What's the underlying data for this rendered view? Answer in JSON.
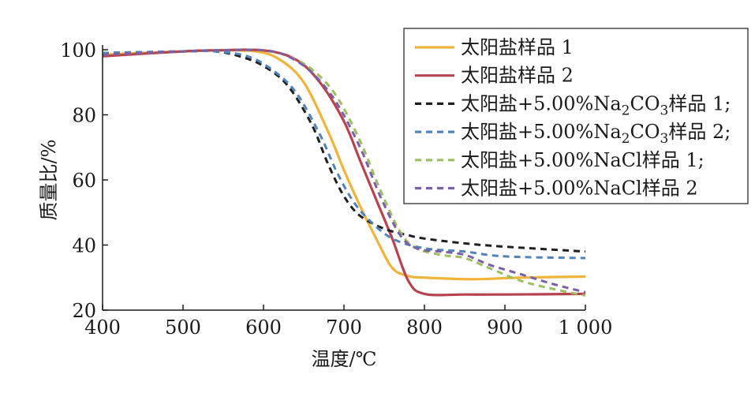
{
  "chart_data": {
    "type": "line",
    "title": "",
    "xlabel": "温度/℃",
    "ylabel": "质量比/%",
    "xlim": [
      400,
      1000
    ],
    "ylim": [
      20,
      100
    ],
    "xticks": [
      400,
      500,
      600,
      700,
      800,
      900,
      1000
    ],
    "xtick_labels": [
      "400",
      "500",
      "600",
      "700",
      "800",
      "900",
      "1 000"
    ],
    "yticks": [
      20,
      40,
      60,
      80,
      100
    ],
    "ytick_labels": [
      "20",
      "40",
      "60",
      "80",
      "100"
    ],
    "legend_position": "top-right",
    "series": [
      {
        "name": "太阳盐样品 1",
        "legend_label": "太阳盐样品 1",
        "color": "#f0b43a",
        "style": "solid",
        "x": [
          400,
          500,
          540,
          590,
          620,
          650,
          680,
          700,
          720,
          740,
          760,
          780,
          800,
          860,
          920,
          1000
        ],
        "y": [
          98.5,
          99.5,
          99.8,
          99.5,
          97,
          90,
          75,
          63,
          52,
          42,
          33,
          30.5,
          30,
          29.5,
          30,
          30.3
        ]
      },
      {
        "name": "太阳盐样品 2",
        "legend_label": "太阳盐样品 2",
        "color": "#b5444e",
        "style": "solid",
        "x": [
          400,
          500,
          540,
          600,
          640,
          670,
          700,
          720,
          740,
          760,
          780,
          800,
          850,
          900,
          1000
        ],
        "y": [
          98,
          99.5,
          99.8,
          99.8,
          97,
          90,
          78,
          66,
          54,
          42,
          29,
          25,
          24.8,
          24.8,
          25
        ]
      },
      {
        "name": "太阳盐+5.00%Na2CO3样品 1",
        "legend_label": "太阳盐+5.00%Na",
        "legend_sub": "2",
        "legend_mid": "CO",
        "legend_sub2": "3",
        "legend_tail": "样品 1;",
        "color": "#1f1f1f",
        "style": "dashed",
        "x": [
          400,
          500,
          540,
          570,
          600,
          630,
          660,
          680,
          700,
          720,
          750,
          780,
          800,
          850,
          900,
          1000
        ],
        "y": [
          99,
          99.5,
          99.5,
          98,
          95,
          89,
          77,
          65,
          55,
          49,
          45,
          43,
          42,
          40.5,
          39.5,
          38
        ]
      },
      {
        "name": "太阳盐+5.00%Na2CO3样品 2",
        "legend_label": "太阳盐+5.00%Na",
        "legend_sub": "2",
        "legend_mid": "CO",
        "legend_sub2": "3",
        "legend_tail": "样品 2;",
        "color": "#4f84ba",
        "style": "dashed",
        "x": [
          400,
          500,
          540,
          580,
          610,
          640,
          670,
          690,
          710,
          730,
          760,
          800,
          850,
          900,
          1000
        ],
        "y": [
          99,
          99.5,
          99.5,
          98,
          94,
          87,
          74,
          63,
          54,
          48,
          42,
          39,
          38,
          36.5,
          36
        ]
      },
      {
        "name": "太阳盐+5.00%NaCl样品 1;",
        "legend_label": "太阳盐+5.00%NaCl样品 1;",
        "color": "#9bbf5f",
        "style": "dashed",
        "x": [
          400,
          500,
          540,
          600,
          630,
          660,
          690,
          720,
          745,
          770,
          790,
          820,
          850,
          880,
          920,
          960,
          1000
        ],
        "y": [
          98.5,
          99.5,
          99.8,
          99.8,
          98,
          94,
          86,
          72,
          57,
          44,
          39,
          37,
          36,
          33,
          29,
          26.5,
          24.5
        ]
      },
      {
        "name": "太阳盐+5.00%NaCl样品 2",
        "legend_label": "太阳盐+5.00%NaCl样品 2",
        "color": "#7b5ea8",
        "style": "dashed",
        "x": [
          400,
          500,
          540,
          600,
          630,
          660,
          690,
          720,
          745,
          770,
          790,
          820,
          850,
          880,
          920,
          960,
          1000
        ],
        "y": [
          98.5,
          99.5,
          99.8,
          99.8,
          98,
          93,
          84,
          70,
          55,
          43,
          39,
          38,
          37,
          34,
          31,
          28,
          25.5
        ]
      }
    ]
  }
}
